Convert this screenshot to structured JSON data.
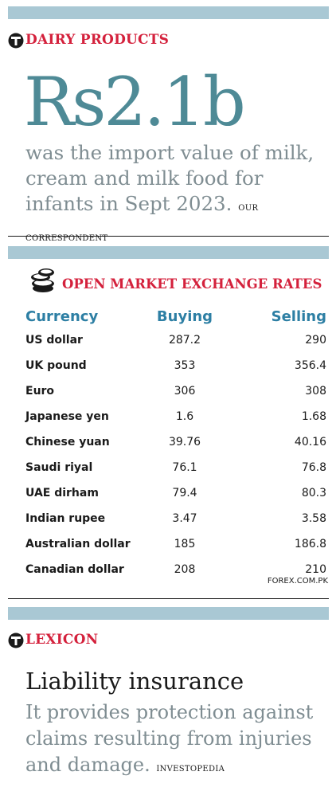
{
  "dairy": {
    "kicker": "DAIRY PRODUCTS",
    "figure": "Rs2.1b",
    "description": "was the import value of milk, cream and milk food for infants in Sept 2023.",
    "credit": "OUR CORRESPONDENT"
  },
  "exchange": {
    "title": "OPEN MARKET EXCHANGE RATES",
    "columns": [
      "Currency",
      "Buying",
      "Selling"
    ],
    "rows": [
      {
        "currency": "US dollar",
        "buying": "287.2",
        "selling": "290"
      },
      {
        "currency": "UK pound",
        "buying": "353",
        "selling": "356.4"
      },
      {
        "currency": "Euro",
        "buying": "306",
        "selling": "308"
      },
      {
        "currency": "Japanese yen",
        "buying": "1.6",
        "selling": "1.68"
      },
      {
        "currency": "Chinese yuan",
        "buying": "39.76",
        "selling": "40.16"
      },
      {
        "currency": "Saudi riyal",
        "buying": "76.1",
        "selling": "76.8"
      },
      {
        "currency": "UAE dirham",
        "buying": "79.4",
        "selling": "80.3"
      },
      {
        "currency": "Indian rupee",
        "buying": "3.47",
        "selling": "3.58"
      },
      {
        "currency": "Australian dollar",
        "buying": "185",
        "selling": "186.8"
      },
      {
        "currency": "Canadian dollar",
        "buying": "208",
        "selling": "210"
      }
    ],
    "source": "FOREX.COM.PK"
  },
  "lexicon": {
    "kicker": "LEXICON",
    "term": "Liability insurance",
    "definition": "It provides protection against claims resulting from injuries and damage.",
    "credit": "INVESTOPEDIA"
  },
  "colors": {
    "accent_red": "#d4213c",
    "teal_figure": "#4e8a96",
    "header_blue": "#2d7fa4",
    "band": "#a9c8d4",
    "grey_text": "#7f8d92"
  },
  "icons": [
    "tribune-t-icon",
    "coins-stack-icon"
  ]
}
